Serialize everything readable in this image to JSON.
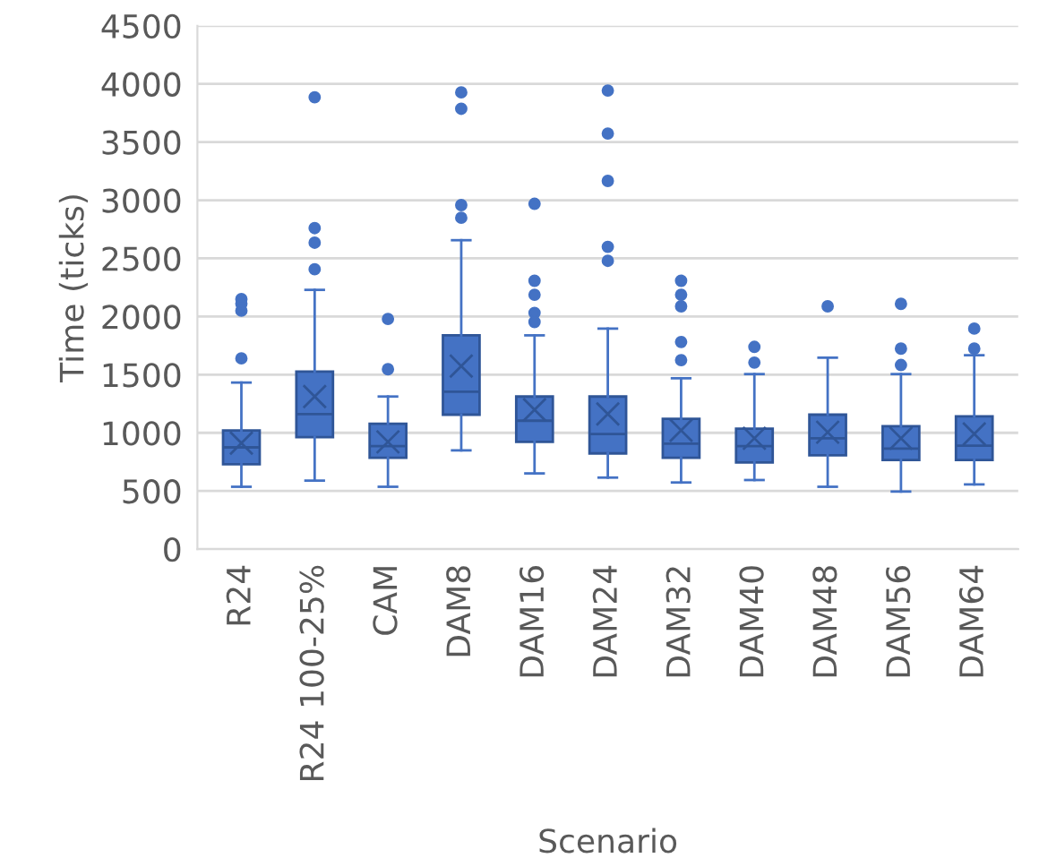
{
  "chart_data": {
    "type": "box",
    "xlabel": "Scenario",
    "ylabel": "Time (ticks)",
    "categories": [
      "R24",
      "R24 100-25%",
      "CAM",
      "DAM8",
      "DAM16",
      "DAM24",
      "DAM32",
      "DAM40",
      "DAM48",
      "DAM56",
      "DAM64"
    ],
    "color": "#4472c4",
    "ylim": [
      0,
      4500
    ],
    "yticks": [
      0,
      500,
      1000,
      1500,
      2000,
      2500,
      3000,
      3500,
      4000,
      4500
    ],
    "grid": "y",
    "boxes": [
      {
        "low": 536,
        "q1": 729,
        "median": 875,
        "q3": 1021,
        "high": 1432,
        "mean": 911,
        "outliers": [
          1640,
          2050,
          2110,
          2150
        ]
      },
      {
        "low": 589,
        "q1": 963,
        "median": 1161,
        "q3": 1526,
        "high": 2229,
        "mean": 1312,
        "outliers": [
          2406,
          2635,
          2760,
          3885
        ]
      },
      {
        "low": 536,
        "q1": 786,
        "median": 885,
        "q3": 1078,
        "high": 1312,
        "mean": 922,
        "outliers": [
          1547,
          1979
        ]
      },
      {
        "low": 849,
        "q1": 1156,
        "median": 1354,
        "q3": 1838,
        "high": 2656,
        "mean": 1573,
        "outliers": [
          2849,
          2958,
          3786,
          3927
        ]
      },
      {
        "low": 651,
        "q1": 922,
        "median": 1104,
        "q3": 1312,
        "high": 1838,
        "mean": 1198,
        "outliers": [
          1953,
          2031,
          2187,
          2307,
          2969
        ]
      },
      {
        "low": 615,
        "q1": 823,
        "median": 990,
        "q3": 1312,
        "high": 1896,
        "mean": 1161,
        "outliers": [
          2479,
          2599,
          3166,
          3573,
          3943
        ]
      },
      {
        "low": 573,
        "q1": 786,
        "median": 906,
        "q3": 1120,
        "high": 1469,
        "mean": 1021,
        "outliers": [
          1625,
          1781,
          2088,
          2187,
          2307
        ]
      },
      {
        "low": 594,
        "q1": 745,
        "median": 885,
        "q3": 1036,
        "high": 1505,
        "mean": 953,
        "outliers": [
          1604,
          1739
        ]
      },
      {
        "low": 536,
        "q1": 807,
        "median": 953,
        "q3": 1156,
        "high": 1646,
        "mean": 1005,
        "outliers": [
          2088
        ]
      },
      {
        "low": 495,
        "q1": 766,
        "median": 864,
        "q3": 1057,
        "high": 1505,
        "mean": 953,
        "outliers": [
          1583,
          1724,
          2109
        ]
      },
      {
        "low": 557,
        "q1": 766,
        "median": 890,
        "q3": 1141,
        "high": 1667,
        "mean": 990,
        "outliers": [
          1724,
          1896
        ]
      }
    ]
  }
}
